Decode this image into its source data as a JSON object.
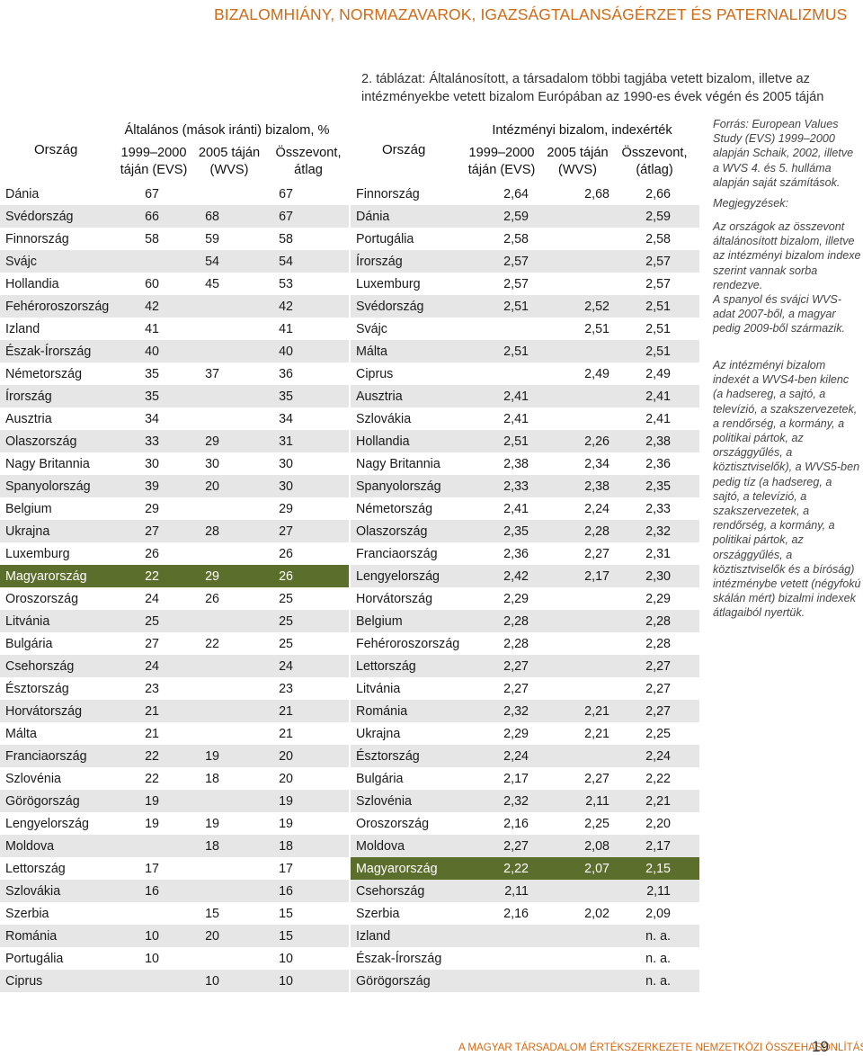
{
  "running_head": "BIZALOMHIÁNY, NORMAZAVAROK, IGAZSÁGTALANSÁGÉRZET ÉS PATERNALIZMUS",
  "caption": "2. táblázat: Általánosított, a társadalom többi tagjába vetett bizalom, illetve az intézményekbe vetett bizalom Európában az 1990-es évek végén és 2005 táján",
  "left_table": {
    "country_header": "Ország",
    "group_header": "Általános (mások iránti) bizalom, %",
    "col1": "1999–2000 táján (EVS)",
    "col2": "2005 táján (WVS)",
    "col3": "Összevont, átlag",
    "rows": [
      {
        "name": "Dánia",
        "a": "67",
        "b": "",
        "c": "67"
      },
      {
        "name": "Svédország",
        "a": "66",
        "b": "68",
        "c": "67"
      },
      {
        "name": "Finnország",
        "a": "58",
        "b": "59",
        "c": "58"
      },
      {
        "name": "Svájc",
        "a": "",
        "b": "54",
        "c": "54"
      },
      {
        "name": "Hollandia",
        "a": "60",
        "b": "45",
        "c": "53"
      },
      {
        "name": "Fehéroroszország",
        "a": "42",
        "b": "",
        "c": "42"
      },
      {
        "name": "Izland",
        "a": "41",
        "b": "",
        "c": "41"
      },
      {
        "name": "Észak-Írország",
        "a": "40",
        "b": "",
        "c": "40"
      },
      {
        "name": "Németország",
        "a": "35",
        "b": "37",
        "c": "36"
      },
      {
        "name": "Írország",
        "a": "35",
        "b": "",
        "c": "35"
      },
      {
        "name": "Ausztria",
        "a": "34",
        "b": "",
        "c": "34"
      },
      {
        "name": "Olaszország",
        "a": "33",
        "b": "29",
        "c": "31"
      },
      {
        "name": "Nagy Britannia",
        "a": "30",
        "b": "30",
        "c": "30"
      },
      {
        "name": "Spanyolország",
        "a": "39",
        "b": "20",
        "c": "30"
      },
      {
        "name": "Belgium",
        "a": "29",
        "b": "",
        "c": "29"
      },
      {
        "name": "Ukrajna",
        "a": "27",
        "b": "28",
        "c": "27"
      },
      {
        "name": "Luxemburg",
        "a": "26",
        "b": "",
        "c": "26"
      },
      {
        "name": "Magyarország",
        "a": "22",
        "b": "29",
        "c": "26"
      },
      {
        "name": "Oroszország",
        "a": "24",
        "b": "26",
        "c": "25"
      },
      {
        "name": "Litvánia",
        "a": "25",
        "b": "",
        "c": "25"
      },
      {
        "name": "Bulgária",
        "a": "27",
        "b": "22",
        "c": "25"
      },
      {
        "name": "Csehország",
        "a": "24",
        "b": "",
        "c": "24"
      },
      {
        "name": "Észtország",
        "a": "23",
        "b": "",
        "c": "23"
      },
      {
        "name": "Horvátország",
        "a": "21",
        "b": "",
        "c": "21"
      },
      {
        "name": "Málta",
        "a": "21",
        "b": "",
        "c": "21"
      },
      {
        "name": "Franciaország",
        "a": "22",
        "b": "19",
        "c": "20"
      },
      {
        "name": "Szlovénia",
        "a": "22",
        "b": "18",
        "c": "20"
      },
      {
        "name": "Görögország",
        "a": "19",
        "b": "",
        "c": "19"
      },
      {
        "name": "Lengyelország",
        "a": "19",
        "b": "19",
        "c": "19"
      },
      {
        "name": "Moldova",
        "a": "",
        "b": "18",
        "c": "18"
      },
      {
        "name": "Lettország",
        "a": "17",
        "b": "",
        "c": "17"
      },
      {
        "name": "Szlovákia",
        "a": "16",
        "b": "",
        "c": "16"
      },
      {
        "name": "Szerbia",
        "a": "",
        "b": "15",
        "c": "15"
      },
      {
        "name": "Románia",
        "a": "10",
        "b": "20",
        "c": "15"
      },
      {
        "name": "Portugália",
        "a": "10",
        "b": "",
        "c": "10"
      },
      {
        "name": "Ciprus",
        "a": "",
        "b": "10",
        "c": "10"
      }
    ]
  },
  "right_table": {
    "country_header": "Ország",
    "group_header": "Intézményi bizalom, indexérték",
    "col1": "1999–2000 táján (EVS)",
    "col2": "2005 táján (WVS)",
    "col3": "Összevont, (átlag)",
    "rows": [
      {
        "name": "Finnország",
        "a": "2,64",
        "b": "2,68",
        "c": "2,66"
      },
      {
        "name": "Dánia",
        "a": "2,59",
        "b": "",
        "c": "2,59"
      },
      {
        "name": "Portugália",
        "a": "2,58",
        "b": "",
        "c": "2,58"
      },
      {
        "name": "Írország",
        "a": "2,57",
        "b": "",
        "c": "2,57"
      },
      {
        "name": "Luxemburg",
        "a": "2,57",
        "b": "",
        "c": "2,57"
      },
      {
        "name": "Svédország",
        "a": "2,51",
        "b": "2,52",
        "c": "2,51"
      },
      {
        "name": "Svájc",
        "a": "",
        "b": "2,51",
        "c": "2,51"
      },
      {
        "name": "Málta",
        "a": "2,51",
        "b": "",
        "c": "2,51"
      },
      {
        "name": "Ciprus",
        "a": "",
        "b": "2,49",
        "c": "2,49"
      },
      {
        "name": "Ausztria",
        "a": "2,41",
        "b": "",
        "c": "2,41"
      },
      {
        "name": "Szlovákia",
        "a": "2,41",
        "b": "",
        "c": "2,41"
      },
      {
        "name": "Hollandia",
        "a": "2,51",
        "b": "2,26",
        "c": "2,38"
      },
      {
        "name": "Nagy Britannia",
        "a": "2,38",
        "b": "2,34",
        "c": "2,36"
      },
      {
        "name": "Spanyolország",
        "a": "2,33",
        "b": "2,38",
        "c": "2,35"
      },
      {
        "name": "Németország",
        "a": "2,41",
        "b": "2,24",
        "c": "2,33"
      },
      {
        "name": "Olaszország",
        "a": "2,35",
        "b": "2,28",
        "c": "2,32"
      },
      {
        "name": "Franciaország",
        "a": "2,36",
        "b": "2,27",
        "c": "2,31"
      },
      {
        "name": "Lengyelország",
        "a": "2,42",
        "b": "2,17",
        "c": "2,30"
      },
      {
        "name": "Horvátország",
        "a": "2,29",
        "b": "",
        "c": "2,29"
      },
      {
        "name": "Belgium",
        "a": "2,28",
        "b": "",
        "c": "2,28"
      },
      {
        "name": "Fehéroroszország",
        "a": "2,28",
        "b": "",
        "c": "2,28"
      },
      {
        "name": "Lettország",
        "a": "2,27",
        "b": "",
        "c": "2,27"
      },
      {
        "name": "Litvánia",
        "a": "2,27",
        "b": "",
        "c": "2,27"
      },
      {
        "name": "Románia",
        "a": "2,32",
        "b": "2,21",
        "c": "2,27"
      },
      {
        "name": "Ukrajna",
        "a": "2,29",
        "b": "2,21",
        "c": "2,25"
      },
      {
        "name": "Észtország",
        "a": "2,24",
        "b": "",
        "c": "2,24"
      },
      {
        "name": "Bulgária",
        "a": "2,17",
        "b": "2,27",
        "c": "2,22"
      },
      {
        "name": "Szlovénia",
        "a": "2,32",
        "b": "2,11",
        "c": "2,21"
      },
      {
        "name": "Oroszország",
        "a": "2,16",
        "b": "2,25",
        "c": "2,20"
      },
      {
        "name": "Moldova",
        "a": "2,27",
        "b": "2,08",
        "c": "2,17"
      },
      {
        "name": "Magyarország",
        "a": "2,22",
        "b": "2,07",
        "c": "2,15"
      },
      {
        "name": "Csehország",
        "a": "2,11",
        "b": "",
        "c": "2,11"
      },
      {
        "name": "Szerbia",
        "a": "2,16",
        "b": "2,02",
        "c": "2,09"
      },
      {
        "name": "Izland",
        "a": "",
        "b": "",
        "c": "n. a."
      },
      {
        "name": "Észak-Írország",
        "a": "",
        "b": "",
        "c": "n. a."
      },
      {
        "name": "Görögország",
        "a": "",
        "b": "",
        "c": "n. a."
      }
    ]
  },
  "notes": {
    "source": "Forrás: European Values Study (EVS) 1999–2000 alapján Schaik, 2002, illetve a WVS 4. és 5. hulláma alapján saját számítások.",
    "heading": "Megjegyzések:",
    "note1": "Az országok az összevont általánosított bizalom, illetve az intézményi bizalom indexe szerint vannak sorba rendezve.",
    "note2": "A spanyol és svájci WVS-adat 2007-ből, a magyar pedig 2009-ből származik.",
    "note3": "Az intézményi bizalom indexét a WVS4-ben kilenc (a hadsereg, a sajtó, a televízió, a szakszervezetek, a rendőrség, a kormány, a politikai pártok, az országgyűlés, a köztisztviselők), a WVS5-ben pedig tíz (a hadsereg, a sajtó, a televízió, a szakszervezetek, a rendőrség, a kormány, a politikai pártok, az országgyűlés, a köztisztviselők és a bíróság) intézménybe vetett (négyfokú skálán mért) bizalmi indexek átlagaiból nyertük."
  },
  "footer": "A MAGYAR TÁRSADALOM ÉRTÉKSZERKEZETE NEMZETKÖZI ÖSSZEHASONLÍTÁSBAN",
  "page_number": "19",
  "highlight_country": "Magyarország",
  "colors": {
    "accent": "#d06a14",
    "highlight": "#5c6e2c",
    "stripe": "#e6e6e6"
  }
}
